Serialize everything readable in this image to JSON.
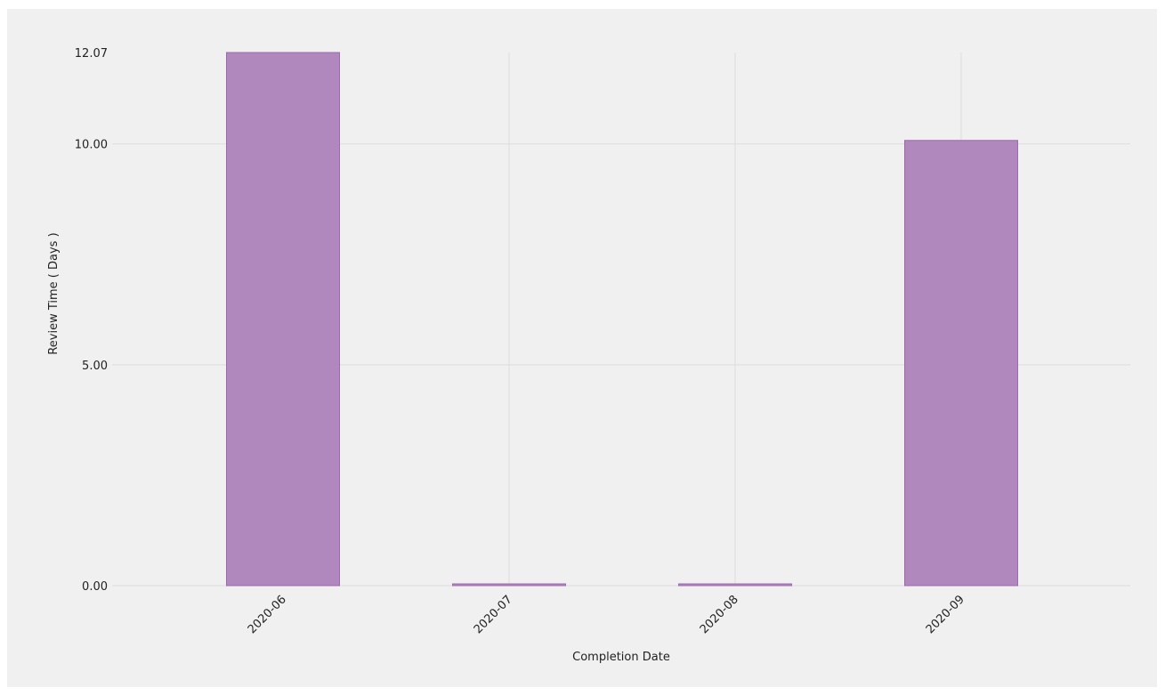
{
  "chart_data": {
    "type": "bar",
    "categories": [
      "2020-06",
      "2020-07",
      "2020-08",
      "2020-09"
    ],
    "values": [
      12.07,
      0.04,
      0.04,
      10.08
    ],
    "xlabel": "Completion Date",
    "ylabel": "Review Time ( Days )",
    "ylim": [
      0,
      12.07
    ],
    "yticks": [
      0,
      5,
      10,
      12.07
    ],
    "ytick_labels": [
      "0.00",
      "5.00",
      "10.00",
      "12.07"
    ],
    "grid": true,
    "colors": {
      "bar_fill": "#b088bd",
      "bar_stroke": "#9d6aae",
      "grid": "#dddddd",
      "background": "#f0f0f0"
    }
  }
}
